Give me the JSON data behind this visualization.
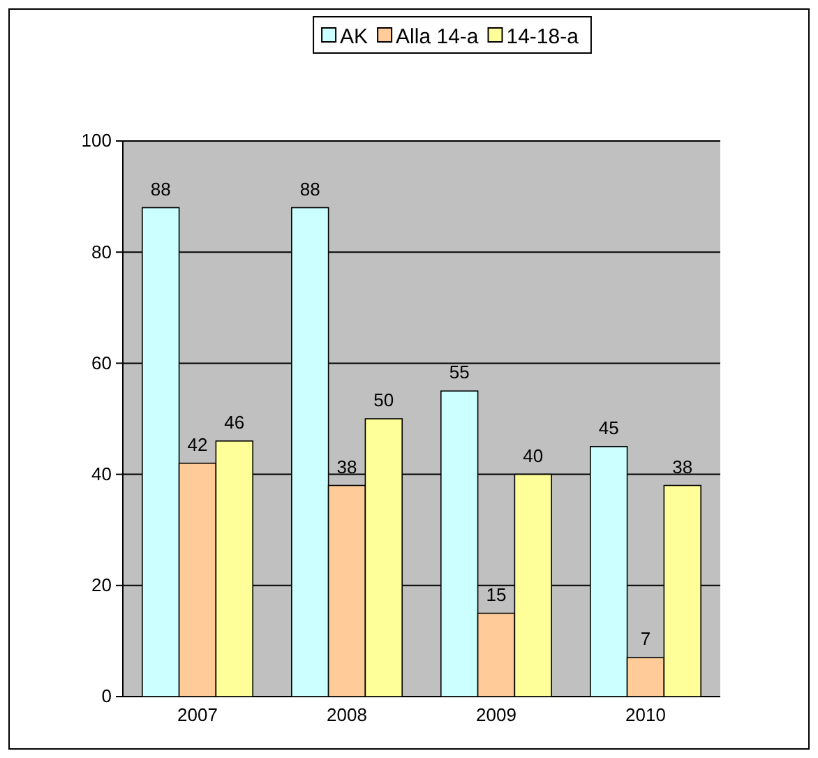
{
  "chart_data": {
    "type": "bar",
    "categories": [
      "2007",
      "2008",
      "2009",
      "2010"
    ],
    "series": [
      {
        "name": "AK",
        "color": "#ccffff",
        "values": [
          88,
          88,
          55,
          45
        ]
      },
      {
        "name": "Alla 14-a",
        "color": "#ffcc99",
        "values": [
          42,
          38,
          15,
          7
        ]
      },
      {
        "name": "14-18-a",
        "color": "#ffff99",
        "values": [
          46,
          50,
          40,
          38
        ]
      }
    ],
    "ylim": [
      0,
      100
    ],
    "yticks": [
      0,
      20,
      40,
      60,
      80,
      100
    ],
    "grid": "y",
    "legend": "top",
    "data_labels": true
  }
}
